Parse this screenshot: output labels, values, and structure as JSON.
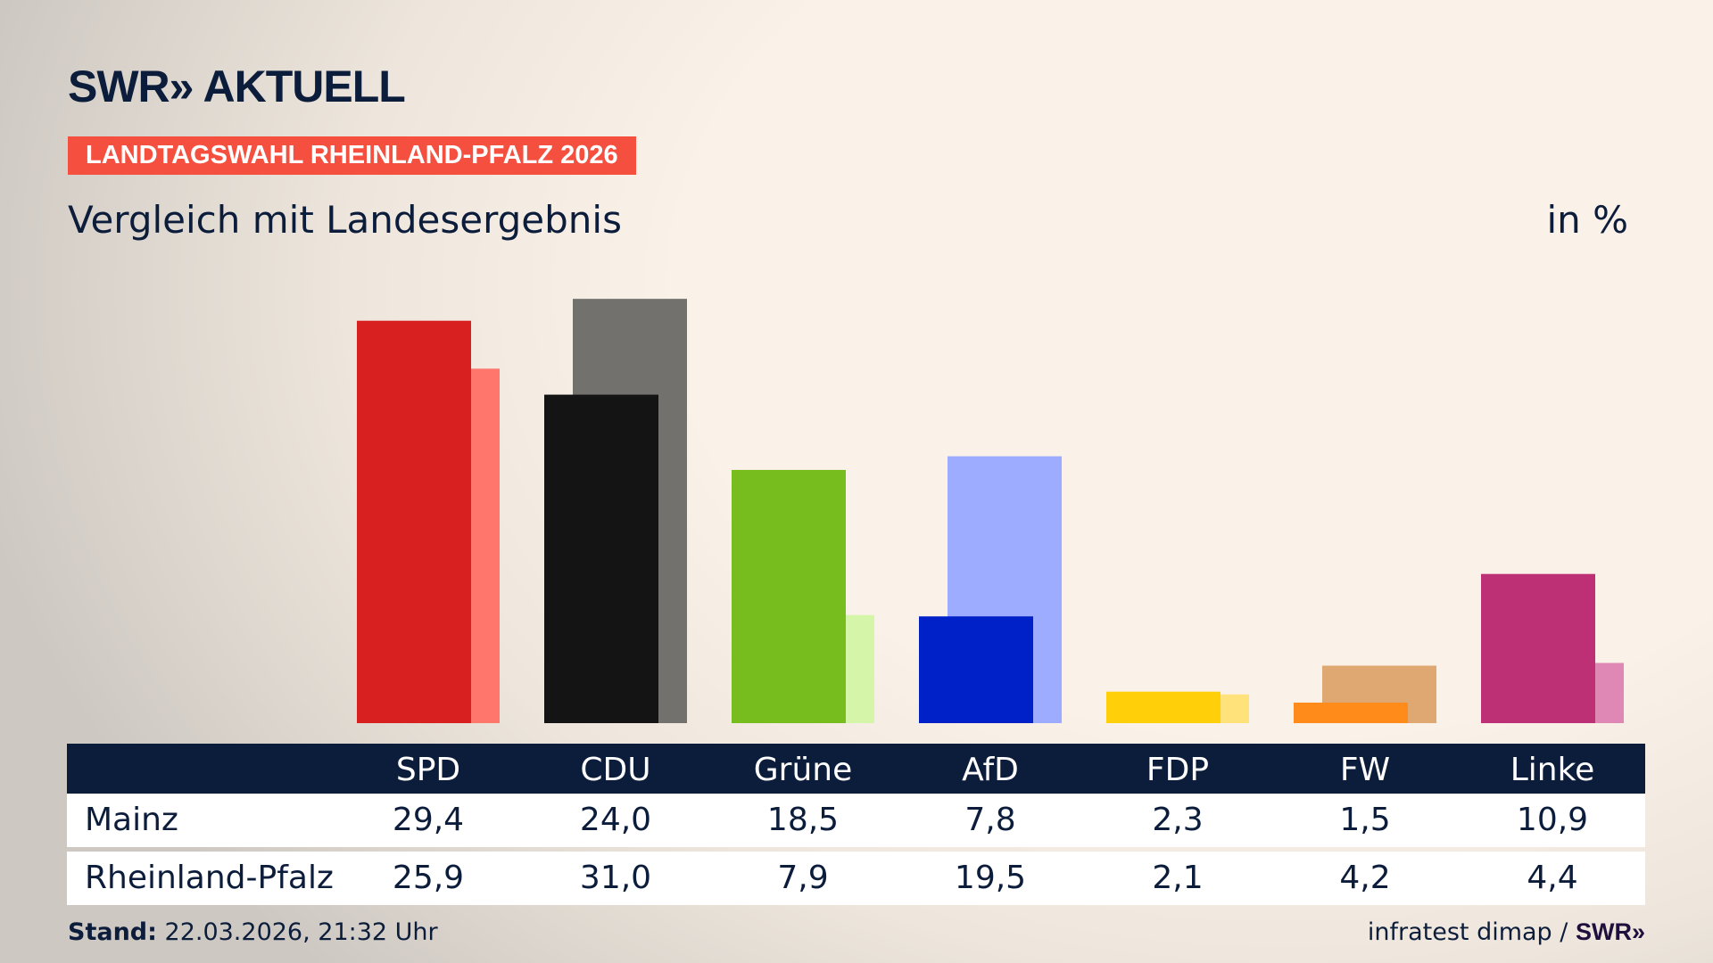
{
  "header": {
    "logo": "SWR» AKTUELL",
    "banner": "LANDTAGSWAHL RHEINLAND-PFALZ 2026",
    "subtitle": "Vergleich mit Landesergebnis",
    "unit": "in %"
  },
  "chart_data": {
    "type": "bar",
    "categories": [
      "SPD",
      "CDU",
      "Grüne",
      "AfD",
      "FDP",
      "FW",
      "Linke"
    ],
    "series": [
      {
        "name": "Mainz",
        "values": [
          29.4,
          24.0,
          18.5,
          7.8,
          2.3,
          1.5,
          10.9
        ],
        "colors": [
          "#d7201f",
          "#141414",
          "#78bd1e",
          "#0020c8",
          "#ffd00a",
          "#ff8b1a",
          "#be3075"
        ]
      },
      {
        "name": "Rheinland-Pfalz",
        "values": [
          25.9,
          31.0,
          7.9,
          19.5,
          2.1,
          4.2,
          4.4
        ],
        "colors": [
          "#ff766c",
          "#73716e",
          "#d5f5a9",
          "#9dacff",
          "#ffe27a",
          "#dfa873",
          "#e088b5"
        ]
      }
    ],
    "ylim": [
      0,
      31
    ],
    "grid": false
  },
  "table": {
    "headers": [
      "SPD",
      "CDU",
      "Grüne",
      "AfD",
      "FDP",
      "FW",
      "Linke"
    ],
    "rows": [
      {
        "label": "Mainz",
        "values": [
          "29,4",
          "24,0",
          "18,5",
          "7,8",
          "2,3",
          "1,5",
          "10,9"
        ]
      },
      {
        "label": "Rheinland-Pfalz",
        "values": [
          "25,9",
          "31,0",
          "7,9",
          "19,5",
          "2,1",
          "4,2",
          "4,4"
        ]
      }
    ]
  },
  "footer": {
    "stand_label": "Stand:",
    "stand_value": "22.03.2026, 21:32 Uhr",
    "source": "infratest dimap /",
    "source_logo": "SWR»"
  }
}
